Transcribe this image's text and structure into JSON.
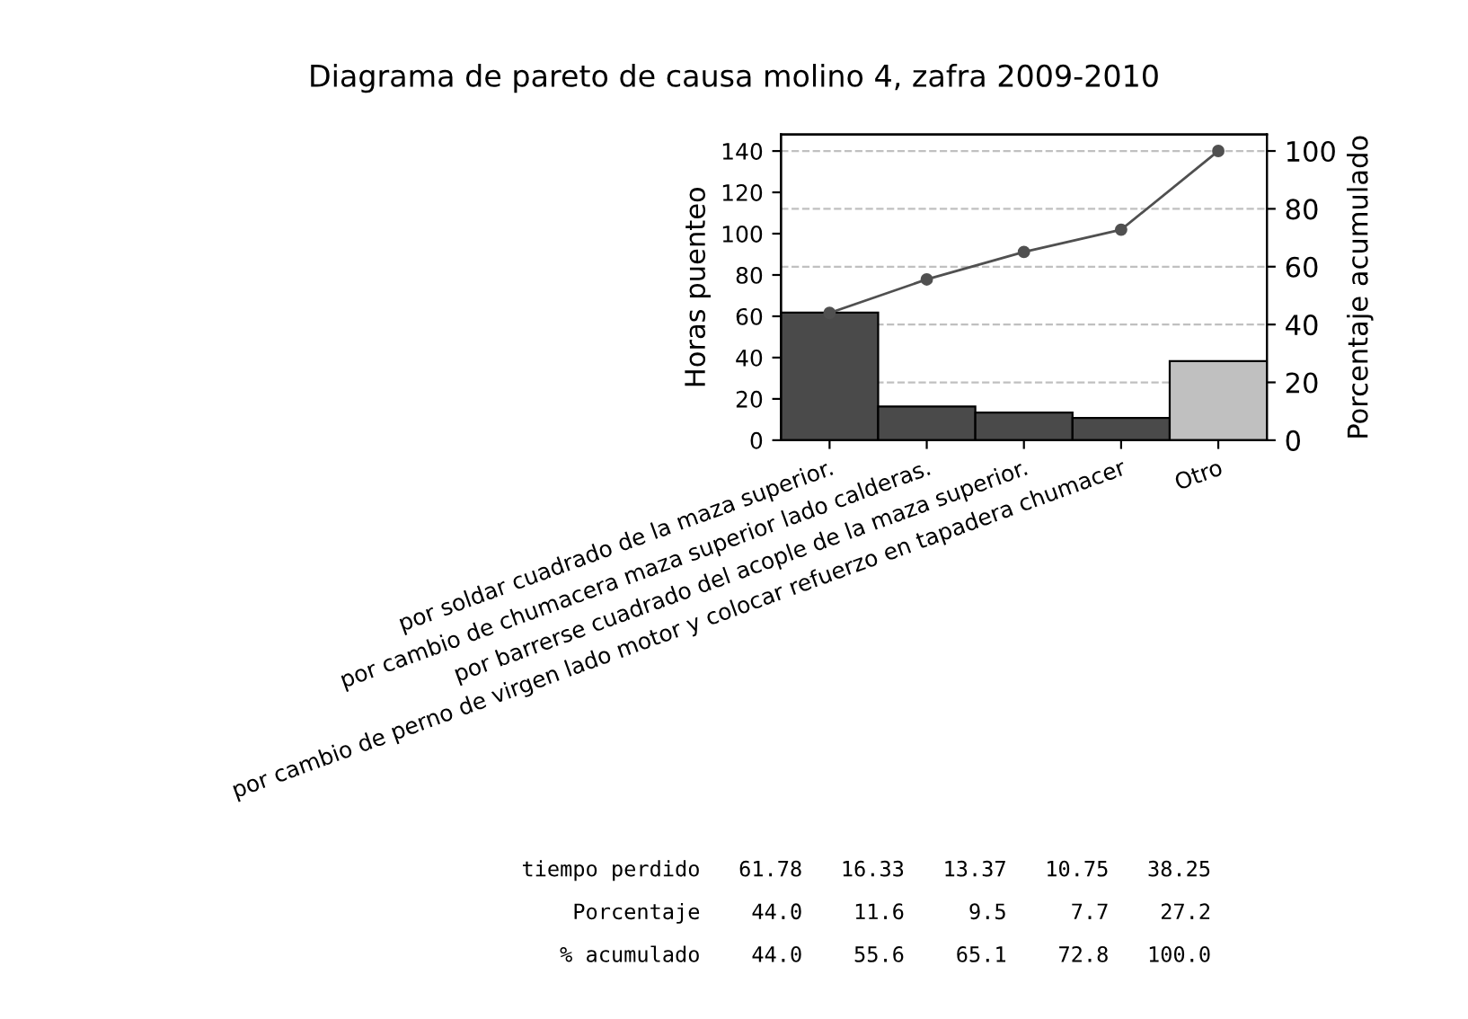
{
  "chart_data": {
    "type": "bar",
    "title": "Diagrama de pareto de causa molino 4, zafra 2009-2010",
    "categories": [
      "por soldar cuadrado de la maza superior.",
      "por cambio de chumacera maza superior lado calderas.",
      "por barrerse cuadrado del acople de la maza superior.",
      "por cambio de perno de virgen lado motor y colocar refuerzo en tapadera chumacer",
      "Otro"
    ],
    "series": [
      {
        "colors": [
          "#4a4a4a",
          "#4a4a4a",
          "#4a4a4a",
          "#4a4a4a",
          "#c0c0c0"
        ],
        "values": [
          61.78,
          16.33,
          13.37,
          10.75,
          38.25
        ]
      },
      {
        "type": "line",
        "axis": "y2",
        "color": "#505050",
        "values": [
          44.0,
          55.6,
          65.1,
          72.8,
          100.0
        ]
      }
    ],
    "ylabel": "Horas puenteo",
    "y2label": "Porcentaje acumulado",
    "ylim": [
      0,
      148
    ],
    "yticks": [
      0,
      20,
      40,
      60,
      80,
      100,
      120,
      140
    ],
    "y2lim": [
      0,
      105.7
    ],
    "y2ticks": [
      0,
      20,
      40,
      60,
      80,
      100
    ],
    "grid": true,
    "marker": "circle",
    "line_style": "solid",
    "legend": false,
    "annotations": [
      "tiempo perdido   61.78   16.33   13.37   10.75   38.25",
      "   Porcentaje    44.0    11.6     9.5     7.7    27.2",
      "  % acumulado    44.0    55.6    65.1    72.8   100.0"
    ]
  }
}
